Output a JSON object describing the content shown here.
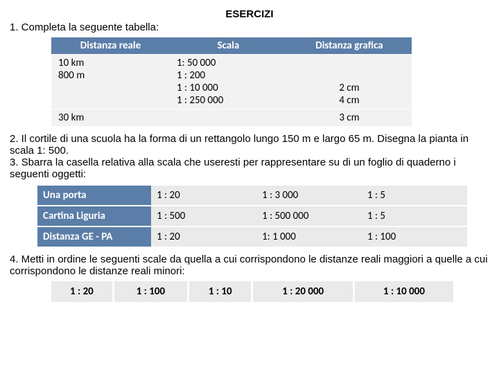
{
  "title": "ESERCIZI",
  "q1": "1. Completa la seguente tabella:",
  "table1": {
    "headers": [
      "Distanza reale",
      "Scala",
      "Distanza grafica"
    ],
    "row1": {
      "c1": "10 km\n800 m",
      "c2": "1: 50 000\n1 : 200\n1 : 10 000\n1 : 250 000",
      "c3": "\n\n2 cm\n4 cm"
    },
    "row2": {
      "c1": "30 km",
      "c2": "",
      "c3": "3 cm"
    }
  },
  "q2": "2. Il cortile di una scuola ha la forma di un rettangolo lungo 150 m e largo 65 m. Disegna la pianta in scala 1: 500.",
  "q3": "3. Sbarra la casella relativa alla scala che useresti per rappresentare su di un foglio di quaderno i seguenti oggetti:",
  "table2": {
    "rows": [
      [
        "Una porta",
        "1 : 20",
        "1 : 3 000",
        "1 : 5"
      ],
      [
        "Cartina Liguria",
        "1 : 500",
        "1 : 500 000",
        "1 : 5"
      ],
      [
        "Distanza GE - PA",
        "1 : 20",
        "1: 1 000",
        "1 : 100"
      ]
    ]
  },
  "q4": "4. Metti in ordine le seguenti scale da quella a cui corrispondono le distanze reali maggiori a quelle a cui corrispondono le distanze reali minori:",
  "table3": [
    "1 : 20",
    "1 : 100",
    "1 : 10",
    "1 : 20 000",
    "1 : 10 000"
  ],
  "colors": {
    "header_bg": "#5b7ea8",
    "header_fg": "#ffffff",
    "cell_bg": "#eaeaea"
  }
}
